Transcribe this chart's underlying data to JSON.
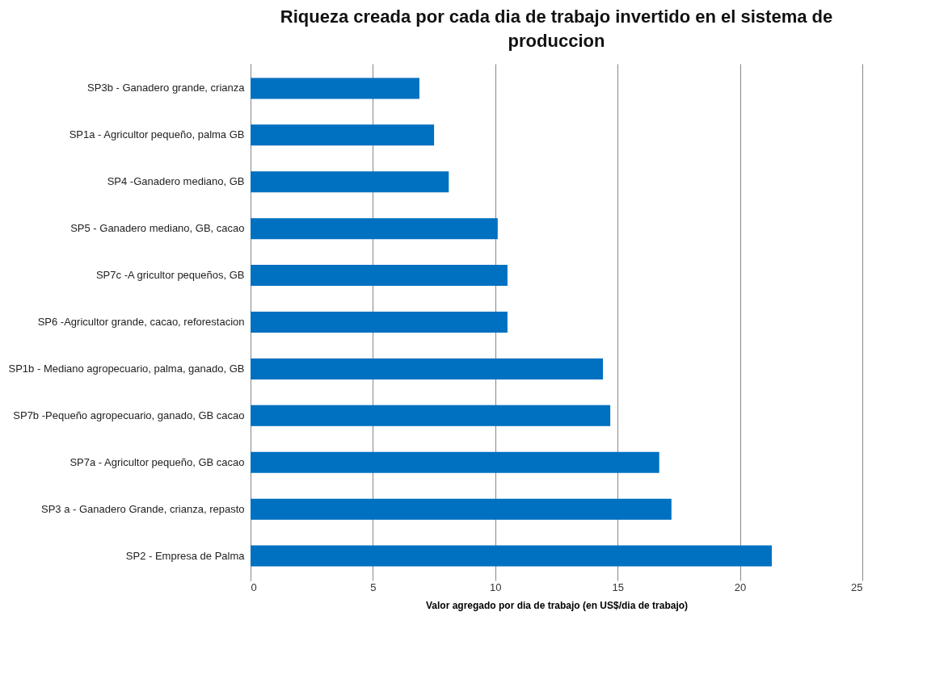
{
  "chart_data": {
    "type": "bar",
    "orientation": "horizontal",
    "title": "Riqueza creada por cada dia de trabajo invertido en el sistema de produccion",
    "xlabel": "Valor agregado por dia de trabajo (en US$/dia de trabajo)",
    "categories": [
      "SP3b - Ganadero grande, crianza",
      "SP1a - Agricultor pequeño, palma GB",
      "SP4 -Ganadero mediano, GB",
      "SP5 - Ganadero mediano, GB, cacao",
      "SP7c -A gricultor pequeños, GB",
      "SP6 -Agricultor grande, cacao, reforestacion",
      "SP1b - Mediano agropecuario, palma, ganado, GB",
      "SP7b -Pequeño agropecuario, ganado, GB cacao",
      "SP7a - Agricultor pequeño, GB cacao",
      "SP3 a - Ganadero Grande, crianza, repasto",
      "SP2 - Empresa de Palma"
    ],
    "values": [
      6.9,
      7.5,
      8.1,
      10.1,
      10.5,
      10.5,
      14.4,
      14.7,
      16.7,
      17.2,
      21.3
    ],
    "color": "#0070c0",
    "xlim": [
      0,
      25
    ],
    "xticks": [
      0,
      5,
      10,
      15,
      20,
      25
    ],
    "grid": "x"
  }
}
